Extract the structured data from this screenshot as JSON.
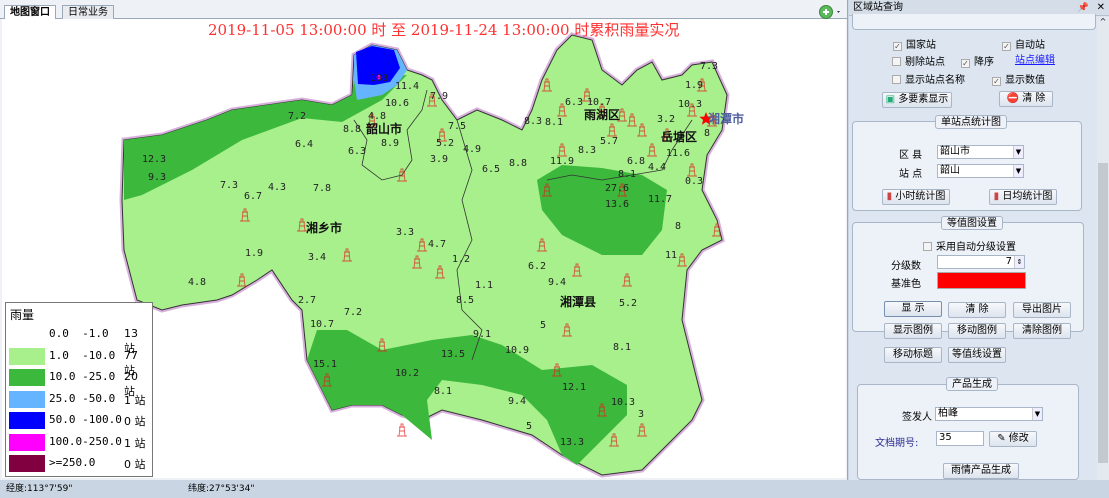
{
  "tabs": [
    {
      "label": "地图窗口",
      "active": true
    },
    {
      "label": "日常业务",
      "active": false
    }
  ],
  "map": {
    "title": "2019-11-05 13:00:00 时 至 2019-11-24 13:00:00 时累积雨量实况",
    "districts": [
      "韶山市",
      "雨湖区",
      "岳塘区",
      "湘潭市",
      "湘乡市",
      "湘潭县"
    ],
    "station_values": [
      "12.3",
      "9.3",
      "7.3",
      "4.3",
      "6.7",
      "7.8",
      "6.4",
      "7.2",
      "108",
      "11.4",
      "10.6",
      "4.8",
      "8.8",
      "8.9",
      "6.3",
      "7.9",
      "7.5",
      "5.2",
      "3.9",
      "4.9",
      "6.5",
      "8.8",
      "11.9",
      "6.3",
      "10.7",
      "8.3",
      "8.1",
      "5.7",
      "8.3",
      "6.8",
      "8.1",
      "27.6",
      "13.6",
      "11.7",
      "1.9",
      "7.3",
      "10.3",
      "3.2",
      "11.6",
      "4.4",
      "8",
      "0.3",
      "8",
      "11",
      "3.3",
      "4.7",
      "1.2",
      "1.1",
      "6.2",
      "9.4",
      "5.2",
      "8.5",
      "5",
      "9.1",
      "10.9",
      "8.1",
      "13.5",
      "10.2",
      "8.1",
      "9.4",
      "12.1",
      "10.3",
      "3",
      "5",
      "13.3",
      "15.1",
      "10.7",
      "7.2",
      "2.7",
      "1.9",
      "3.4",
      "4.8"
    ],
    "colors": {
      "light_green": "#a8f08c",
      "green": "#3cb83c",
      "light_blue": "#64b4ff",
      "blue": "#0000ff",
      "magenta": "#ff00ff",
      "station_icon": "#e02020",
      "capital_star": "#ff0000"
    }
  },
  "legend": {
    "title": "雨量",
    "rows": [
      {
        "range": "0.0  -1.0",
        "count": "13 站",
        "color": "#ffffff"
      },
      {
        "range": "1.0  -10.0",
        "count": "77 站",
        "color": "#a8f08c"
      },
      {
        "range": "10.0 -25.0",
        "count": "20 站",
        "color": "#3cb83c"
      },
      {
        "range": "25.0 -50.0",
        "count": "1  站",
        "color": "#64b4ff"
      },
      {
        "range": "50.0 -100.0",
        "count": "0  站",
        "color": "#0000ff"
      },
      {
        "range": "100.0-250.0",
        "count": "1  站",
        "color": "#ff00ff"
      },
      {
        "range": ">=250.0",
        "count": "0  站",
        "color": "#800040"
      }
    ]
  },
  "status": {
    "lon": "经度:113°7'59\"",
    "lat": "纬度:27°53'34\""
  },
  "panel": {
    "title": "区域站查询",
    "pin": "📌",
    "close": "✕",
    "national": "国家站",
    "auto": "自动站",
    "exclude": "剔除站点",
    "desc": "降序",
    "edit_link": "站点编辑",
    "show_name": "显示站点名称",
    "show_value": "显示数值",
    "multi": "多要素显示",
    "clear": "清  除",
    "single": {
      "title": "单站点统计图",
      "county_label": "区  县",
      "county": "韶山市",
      "station_label": "站  点",
      "station": "韶山",
      "hourly": "小时统计图",
      "daily": "日均统计图"
    },
    "contour": {
      "title": "等值图设置",
      "auto": "采用自动分级设置",
      "levels_label": "分级数",
      "levels": "7",
      "base_label": "基准色",
      "base_color": "#ff0000",
      "buttons": [
        "显  示",
        "清  除",
        "导出图片",
        "显示图例",
        "移动图例",
        "清除图例",
        "移动标题",
        "等值线设置"
      ]
    },
    "product": {
      "title": "产品生成",
      "issuer_label": "签发人",
      "issuer": "柏峰",
      "doc_label": "文档期号:",
      "doc": "35",
      "modify": "修改",
      "generate": "雨情产品生成"
    }
  }
}
